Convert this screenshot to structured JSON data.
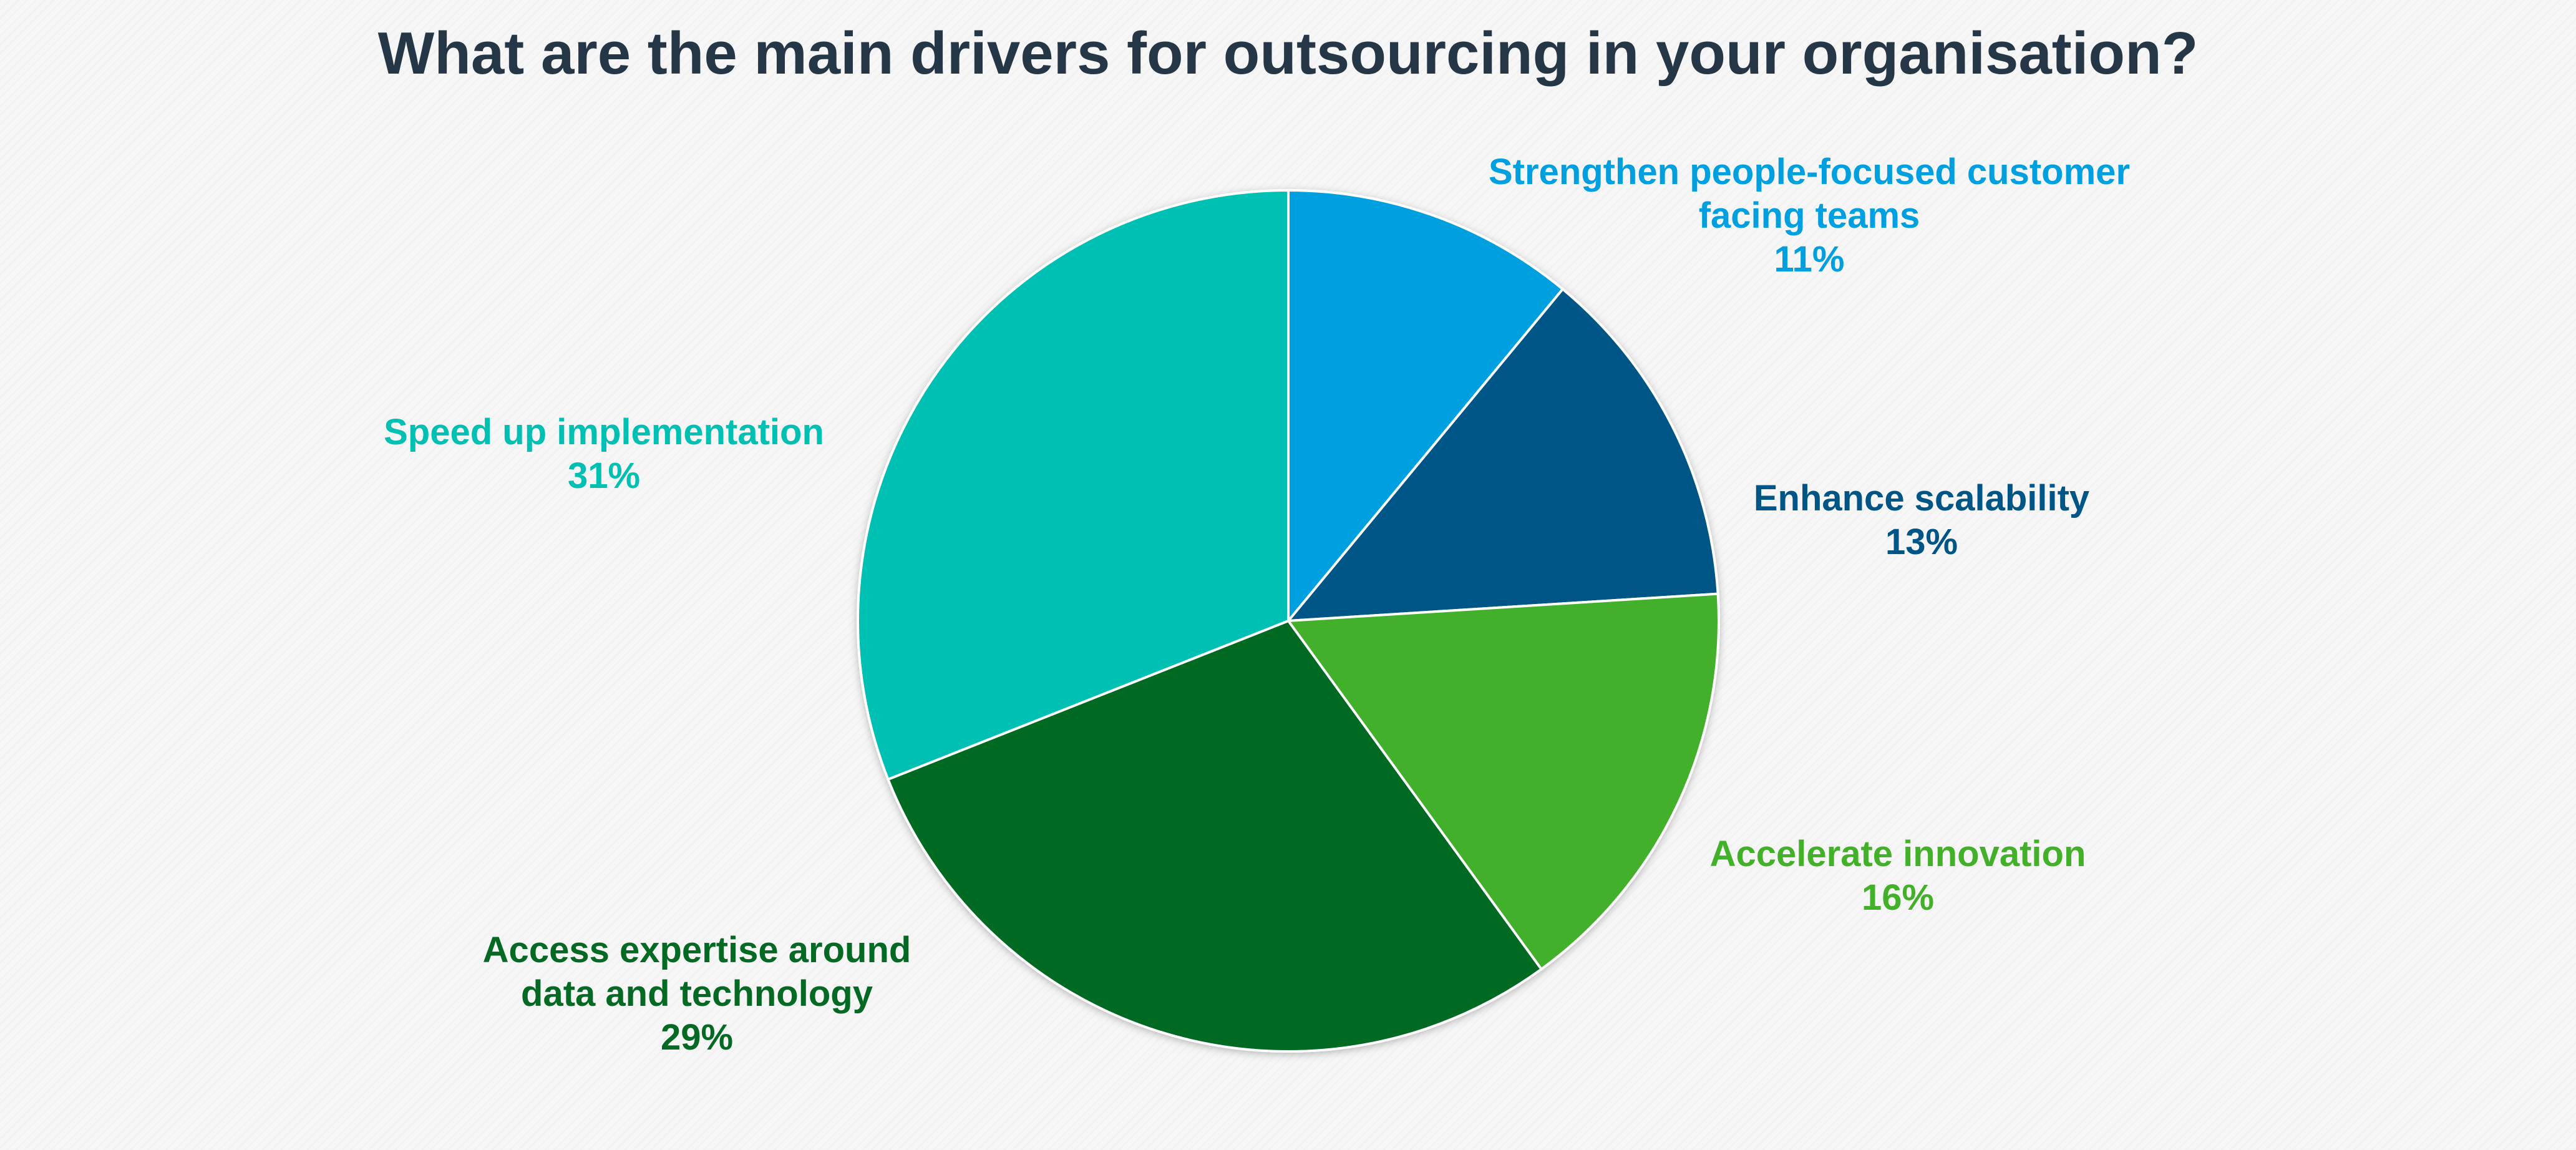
{
  "chart_data": {
    "type": "pie",
    "title": "What are the main drivers for outsourcing in your organisation?",
    "slices": [
      {
        "label_lines": [
          "Strengthen people-focused customer",
          "facing teams"
        ],
        "pct_label": "11%",
        "value": 11,
        "color": "#009fe0"
      },
      {
        "label_lines": [
          "Enhance scalability"
        ],
        "pct_label": "13%",
        "value": 13,
        "color": "#005587"
      },
      {
        "label_lines": [
          "Accelerate innovation"
        ],
        "pct_label": "16%",
        "value": 16,
        "color": "#43b02a"
      },
      {
        "label_lines": [
          "Access expertise around",
          "data and technology"
        ],
        "pct_label": "29%",
        "value": 29,
        "color": "#046a23"
      },
      {
        "label_lines": [
          "Speed up implementation"
        ],
        "pct_label": "31%",
        "value": 31,
        "color": "#00bfb3"
      }
    ],
    "start_angle": "12 o'clock",
    "direction": "clockwise",
    "legend": "none (data labels outside slices)"
  }
}
